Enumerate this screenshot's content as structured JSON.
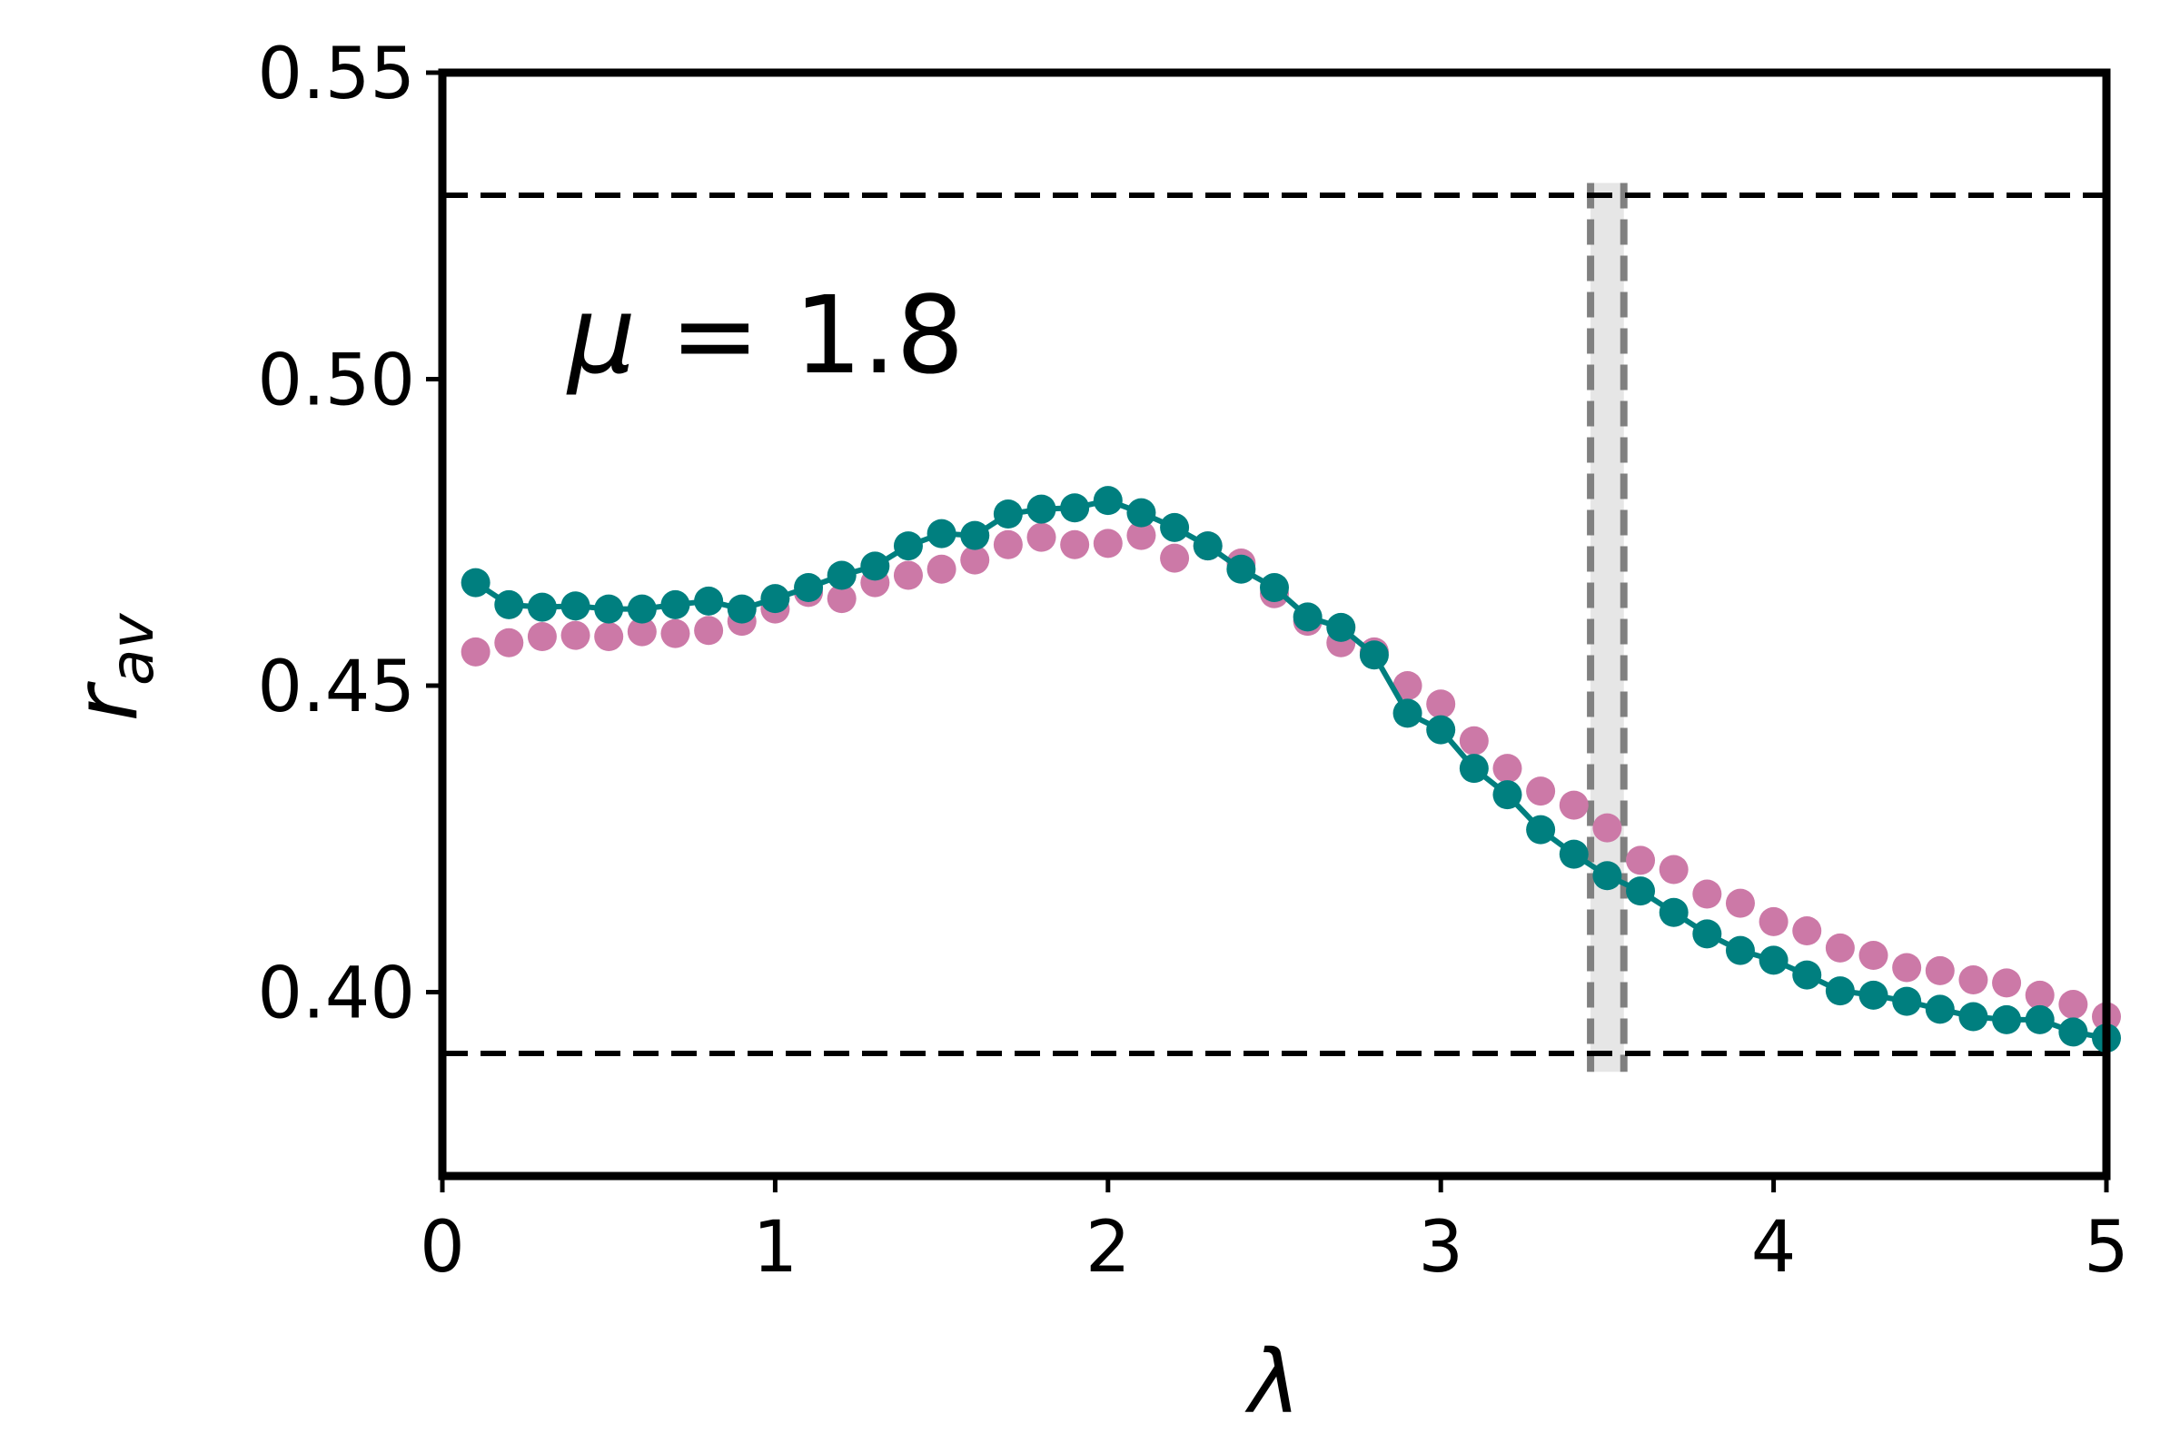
{
  "chart_data": {
    "type": "scatter",
    "title": "",
    "xlabel": "λ",
    "ylabel_main": "r",
    "ylabel_sub": "av",
    "annotation": {
      "mu_symbol": "μ",
      "equals": " = ",
      "value": "1.8"
    },
    "xlim": [
      0,
      5
    ],
    "ylim": [
      0.37,
      0.55
    ],
    "xticks": [
      0,
      1,
      2,
      3,
      4,
      5
    ],
    "xtick_labels": [
      "0",
      "1",
      "2",
      "3",
      "4",
      "5"
    ],
    "yticks": [
      0.4,
      0.45,
      0.5,
      0.55
    ],
    "ytick_labels": [
      "0.40",
      "0.45",
      "0.50",
      "0.55"
    ],
    "grid": false,
    "legend": "none",
    "hlines": [
      {
        "y": 0.53,
        "color": "#000000",
        "style": "dashed"
      },
      {
        "y": 0.39,
        "color": "#000000",
        "style": "dashed"
      }
    ],
    "vband": {
      "x0": 3.45,
      "x1": 3.55,
      "ymin": 0.387,
      "ymax": 0.532,
      "fill": "#e6e6e6",
      "edge": "#808080",
      "style": "dashed"
    },
    "x": [
      0.1,
      0.2,
      0.3,
      0.4,
      0.5,
      0.6,
      0.7,
      0.8,
      0.9,
      1.0,
      1.1,
      1.2,
      1.3,
      1.4,
      1.5,
      1.6,
      1.7,
      1.8,
      1.9,
      2.0,
      2.1,
      2.2,
      2.3,
      2.4,
      2.5,
      2.6,
      2.7,
      2.8,
      2.9,
      3.0,
      3.1,
      3.2,
      3.3,
      3.4,
      3.5,
      3.6,
      3.7,
      3.8,
      3.9,
      4.0,
      4.1,
      4.2,
      4.3,
      4.4,
      4.5,
      4.6,
      4.7,
      4.8,
      4.9,
      5.0
    ],
    "series": [
      {
        "color": "#cc79a7",
        "line": false,
        "values": [
          0.4555,
          0.457,
          0.458,
          0.4582,
          0.458,
          0.4588,
          0.4585,
          0.459,
          0.4605,
          0.4625,
          0.4652,
          0.4642,
          0.4668,
          0.468,
          0.469,
          0.4705,
          0.473,
          0.4742,
          0.473,
          0.4732,
          0.4745,
          0.4708,
          0.4728,
          0.47,
          0.465,
          0.4605,
          0.457,
          0.4555,
          0.45,
          0.447,
          0.441,
          0.4365,
          0.4328,
          0.4305,
          0.4268,
          0.4215,
          0.42,
          0.416,
          0.4145,
          0.4115,
          0.41,
          0.4072,
          0.406,
          0.404,
          0.4035,
          0.402,
          0.4015,
          0.3995,
          0.398,
          0.396
        ]
      },
      {
        "color": "#007f7f",
        "line": true,
        "values": [
          0.4668,
          0.4632,
          0.4628,
          0.463,
          0.4625,
          0.4625,
          0.4632,
          0.4638,
          0.4625,
          0.4642,
          0.466,
          0.468,
          0.4695,
          0.4728,
          0.4748,
          0.4745,
          0.478,
          0.4788,
          0.479,
          0.4802,
          0.4782,
          0.4758,
          0.4728,
          0.469,
          0.466,
          0.4612,
          0.4595,
          0.455,
          0.4455,
          0.4428,
          0.4365,
          0.4322,
          0.4265,
          0.4225,
          0.419,
          0.4165,
          0.413,
          0.4095,
          0.4068,
          0.4052,
          0.4028,
          0.4002,
          0.3995,
          0.3985,
          0.3972,
          0.396,
          0.3955,
          0.3955,
          0.3935,
          0.3925
        ]
      }
    ]
  }
}
